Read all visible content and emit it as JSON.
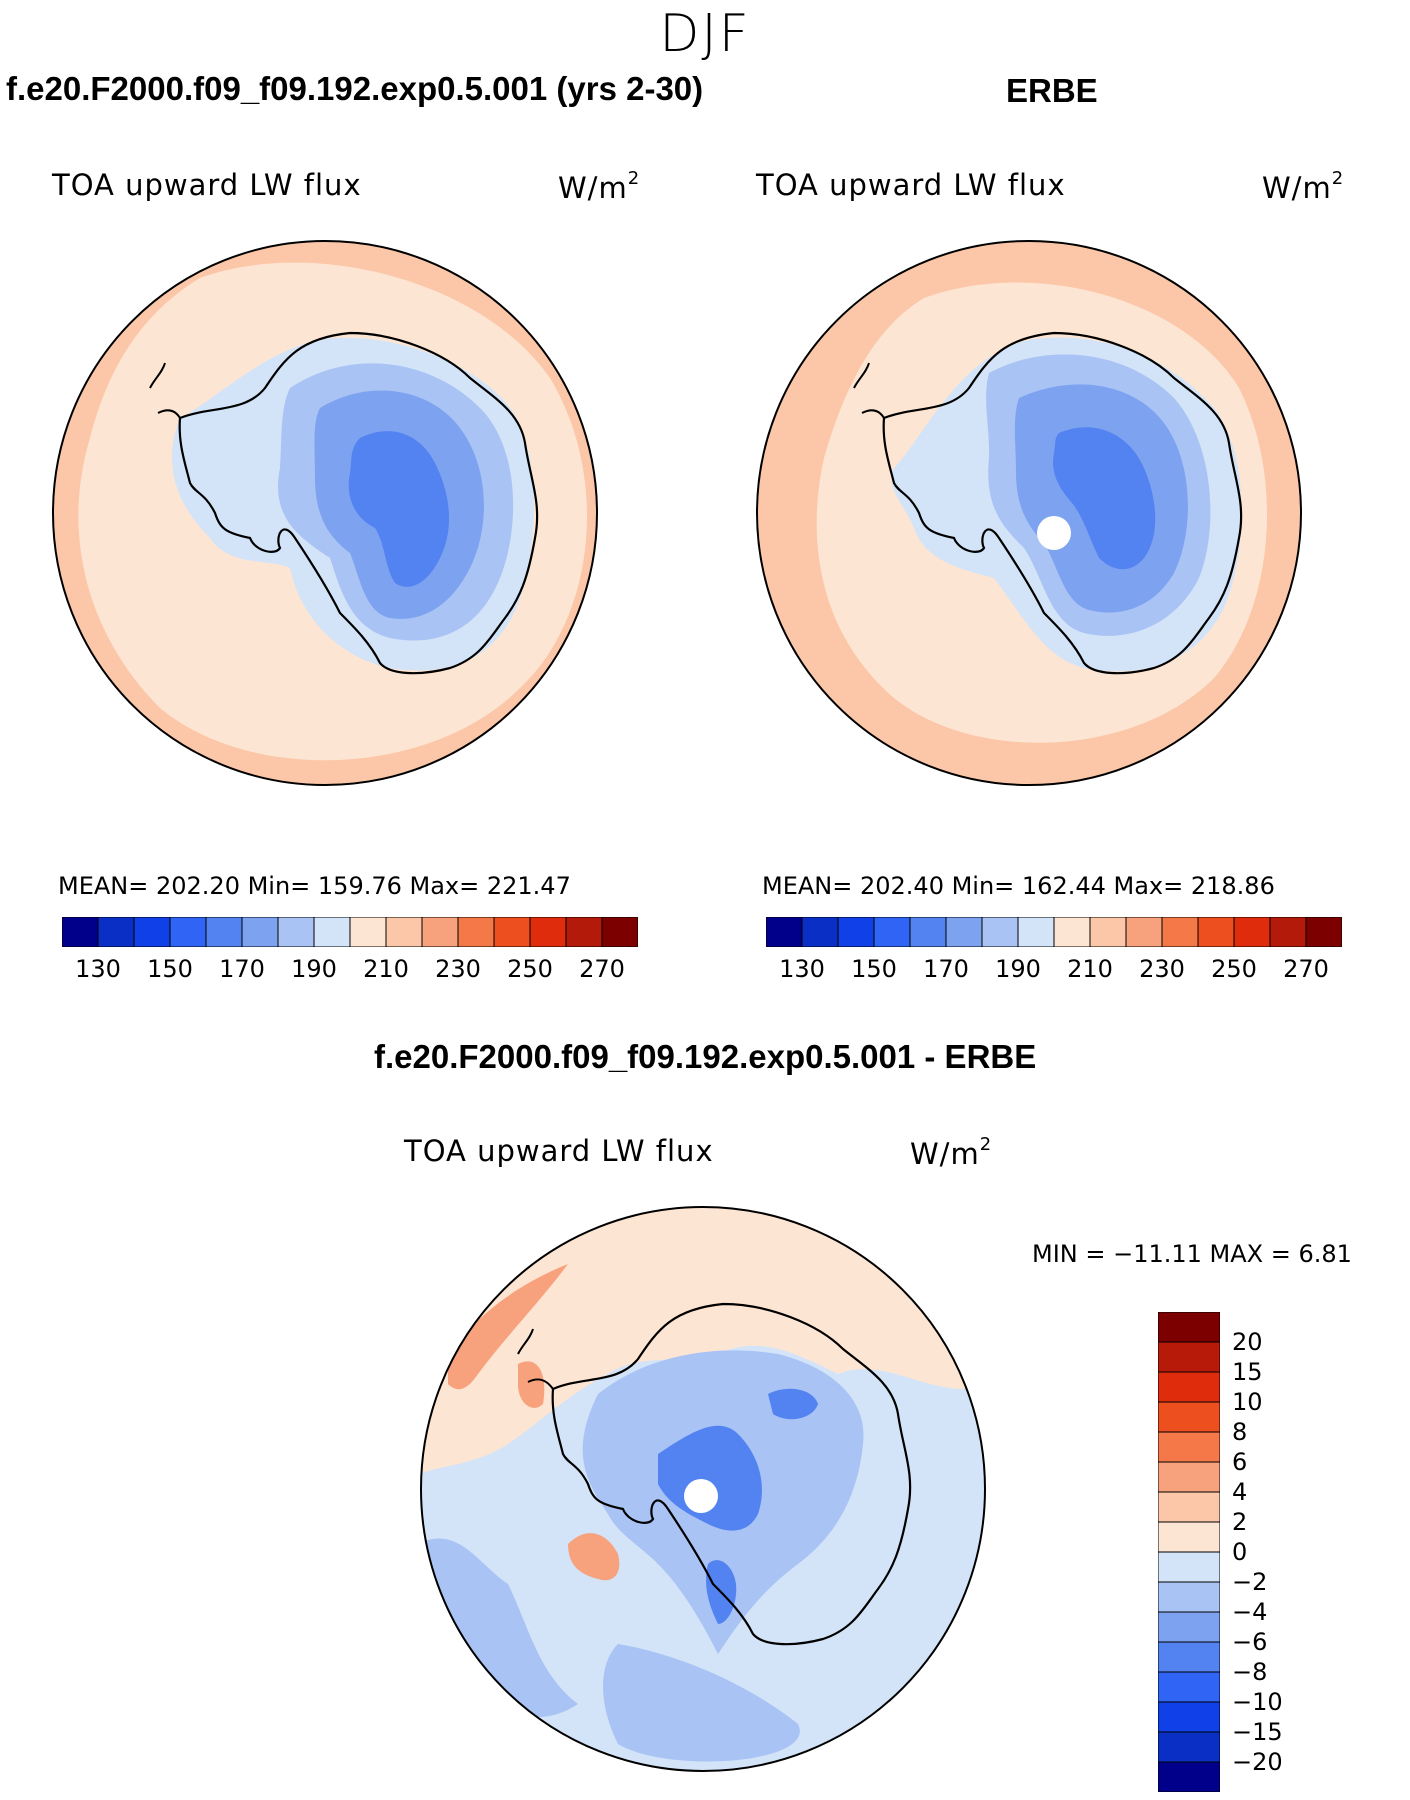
{
  "season": "DJF",
  "panels": [
    {
      "title": "f.e20.F2000.f09_f09.192.exp0.5.001 (yrs 2-30)",
      "variable": "TOA upward LW flux",
      "units": "W/m",
      "units_exp": "2",
      "stats": "MEAN= 202.20   Min= 159.76   Max= 221.47"
    },
    {
      "title": "ERBE",
      "variable": "TOA upward LW flux",
      "units": "W/m",
      "units_exp": "2",
      "stats": "MEAN= 202.40   Min= 162.44   Max= 218.86"
    }
  ],
  "diff_panel": {
    "title": "f.e20.F2000.f09_f09.192.exp0.5.001 - ERBE",
    "variable": "TOA upward LW flux",
    "units": "W/m",
    "units_exp": "2",
    "minmax": "MIN = −11.11 MAX =    6.81"
  },
  "abs_colorbar": {
    "colors": [
      "#00008b",
      "#0a2fc4",
      "#1040e8",
      "#2f64f5",
      "#5283f0",
      "#7da3f0",
      "#a9c3f5",
      "#d3e4f8",
      "#fde5d3",
      "#fbc7a8",
      "#f7a27c",
      "#f47848",
      "#ee4f1f",
      "#df2c0c",
      "#b41a0a",
      "#7c0000"
    ],
    "labels": [
      "130",
      "150",
      "170",
      "190",
      "210",
      "230",
      "250",
      "270"
    ]
  },
  "diff_colorbar": {
    "colors": [
      "#7c0000",
      "#b81a0a",
      "#df2c0c",
      "#ee4f1f",
      "#f47848",
      "#f7a27c",
      "#fbc7a8",
      "#fde5d3",
      "#d3e4f8",
      "#a9c3f5",
      "#7da3f0",
      "#5283f0",
      "#2f64f5",
      "#1040e8",
      "#0a2fc4",
      "#00008b"
    ],
    "labels": [
      "20",
      "15",
      "10",
      "8",
      "6",
      "4",
      "2",
      "0",
      "−2",
      "−4",
      "−6",
      "−8",
      "−10",
      "−15",
      "−20"
    ]
  },
  "map_colors": {
    "ocean_abs": "#fde5d3",
    "ocean_warm": "#fbc7a8",
    "ice1": "#d3e4f8",
    "ice2": "#a9c3f5",
    "ice3": "#7da3f0",
    "ice4": "#5283f0",
    "ice5": "#2f64f5",
    "diff_pos": "#fde5d3",
    "diff_pos2": "#f7a27c",
    "diff_neg1": "#d3e4f8",
    "diff_neg2": "#a9c3f5",
    "diff_neg3": "#5283f0"
  }
}
